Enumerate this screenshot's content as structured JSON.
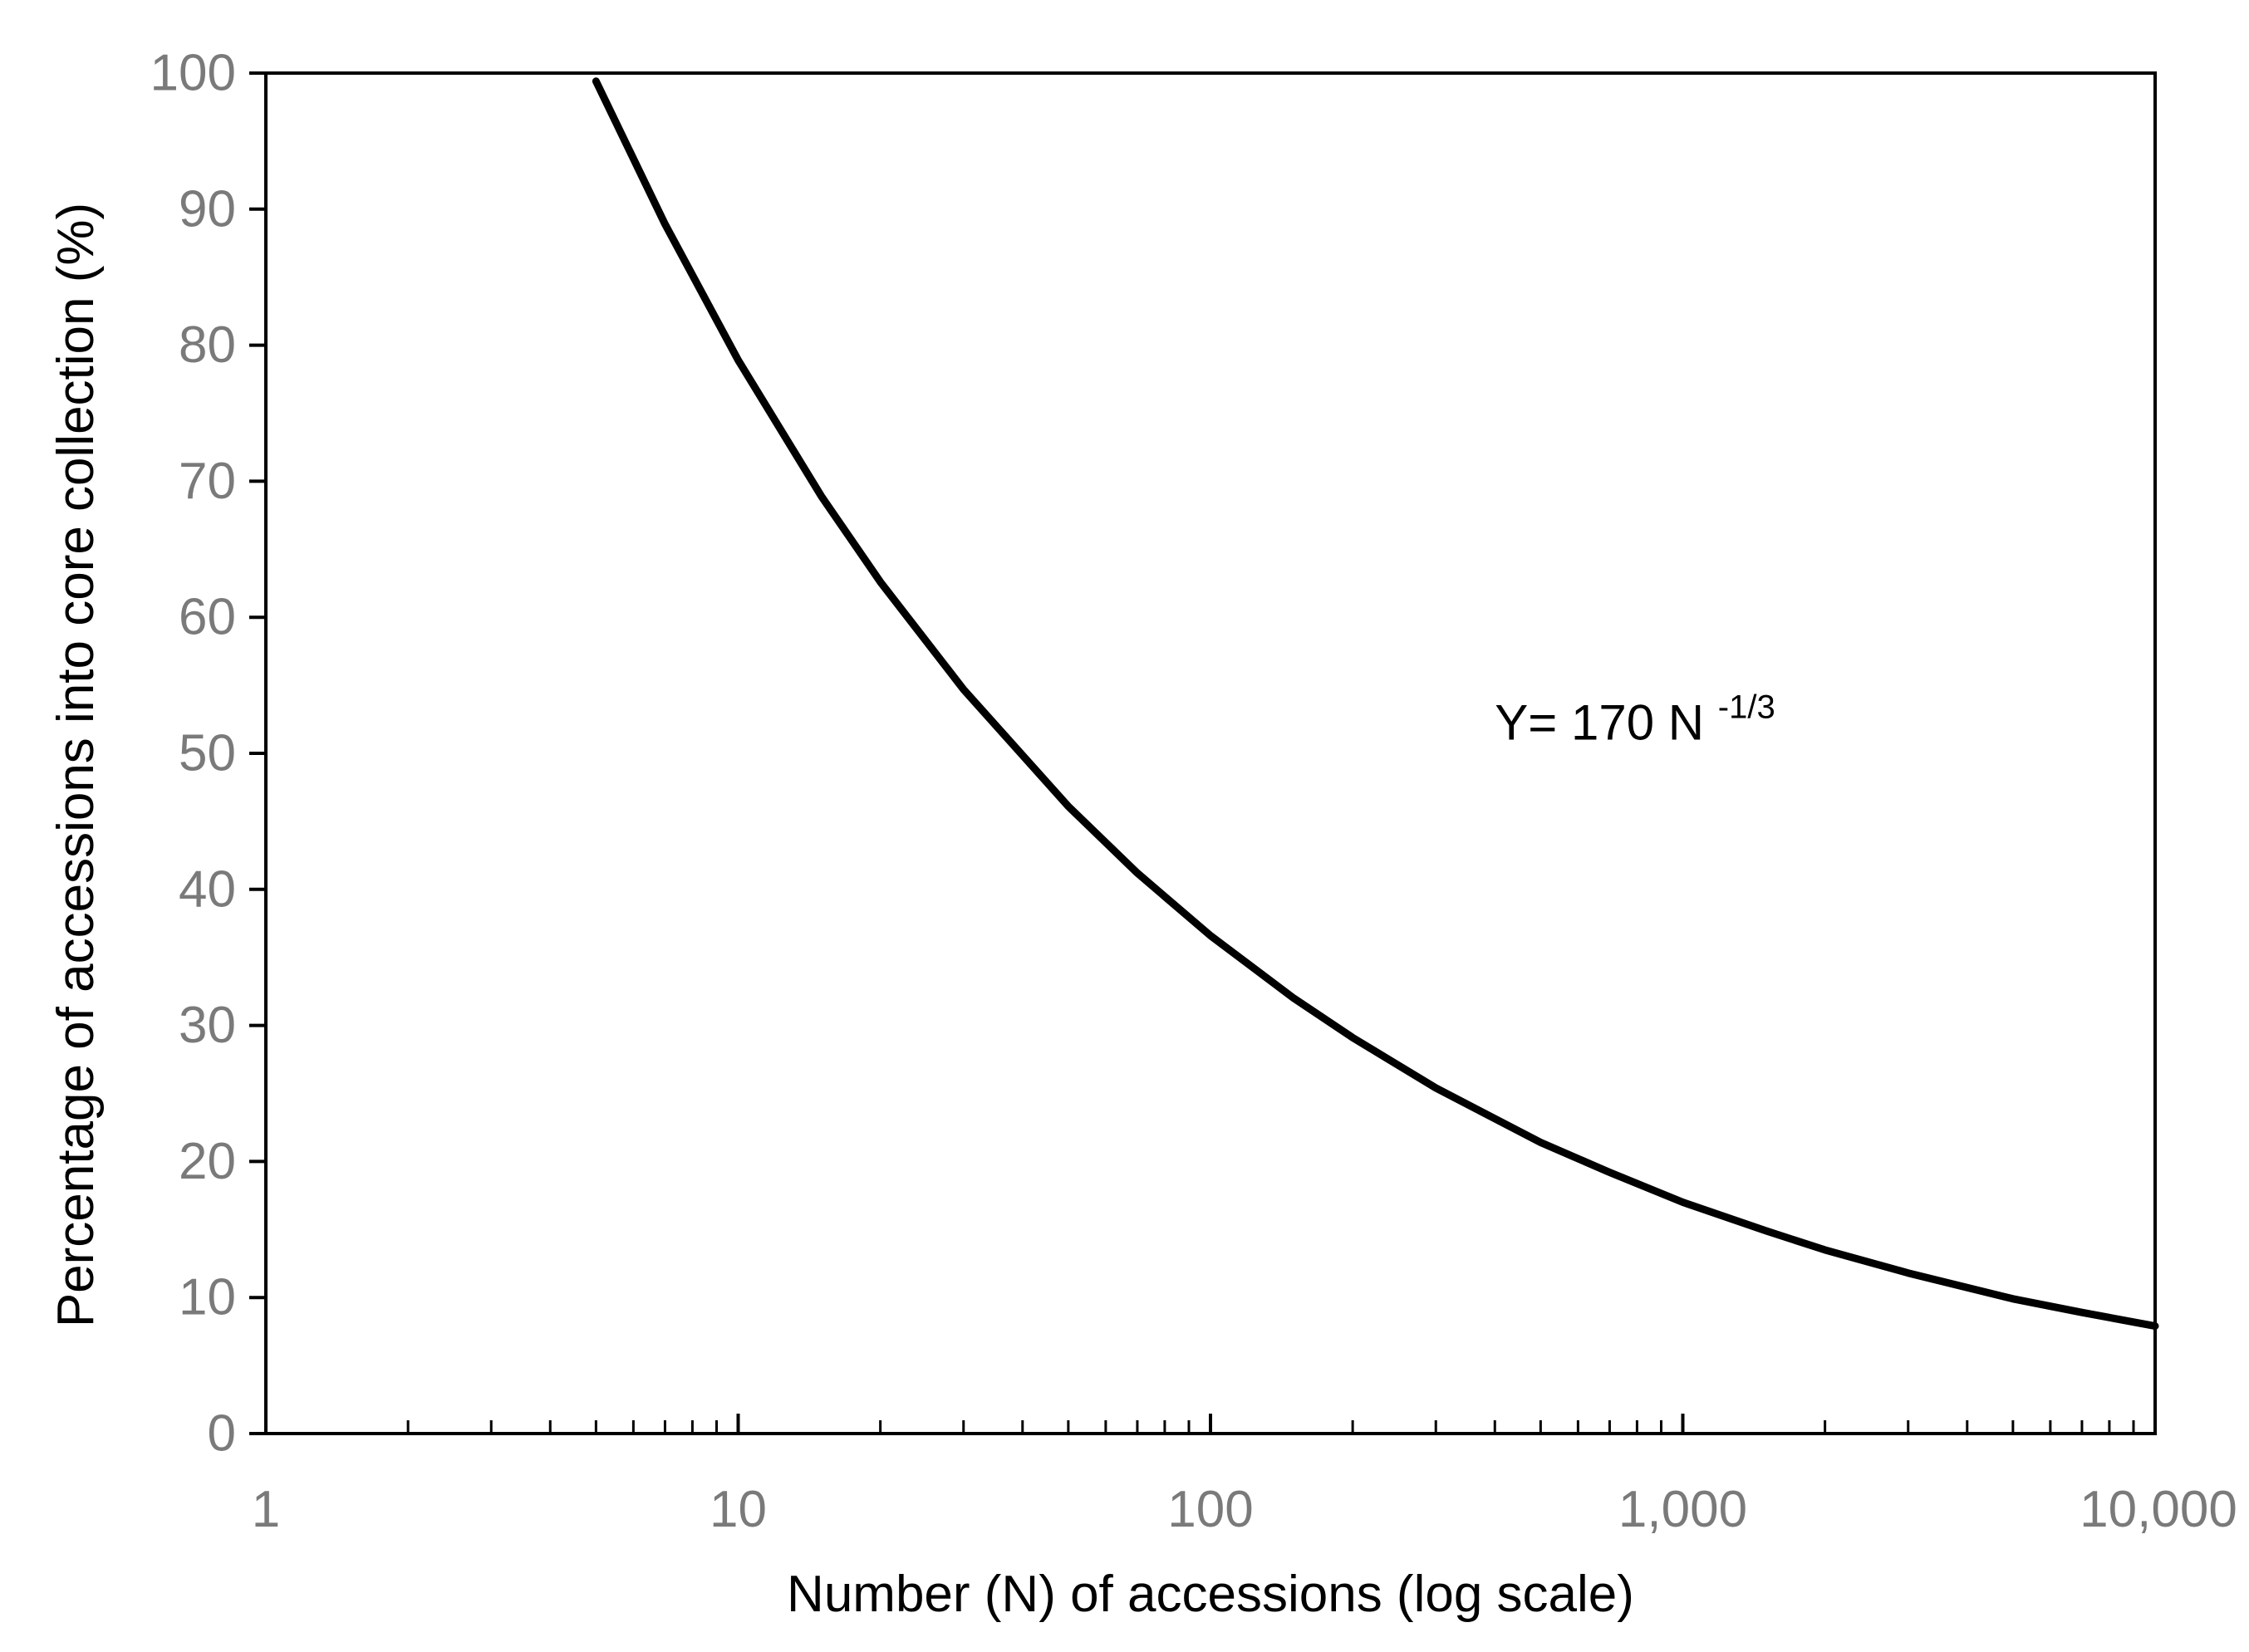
{
  "chart_data": {
    "type": "line",
    "title": "",
    "xlabel": "Number (N) of accessions (log scale)",
    "ylabel": "Percentage of accessions into core collection  (%)",
    "x_scale": "log",
    "xlim": [
      1,
      10000
    ],
    "ylim": [
      0,
      100
    ],
    "grid": false,
    "legend": "none",
    "x_ticks": [
      {
        "value": 1,
        "label": "1"
      },
      {
        "value": 10,
        "label": "10"
      },
      {
        "value": 100,
        "label": "100"
      },
      {
        "value": 1000,
        "label": "1,000"
      },
      {
        "value": 10000,
        "label": "10,000"
      }
    ],
    "y_ticks": [
      {
        "value": 0,
        "label": "0"
      },
      {
        "value": 10,
        "label": "10"
      },
      {
        "value": 20,
        "label": "20"
      },
      {
        "value": 30,
        "label": "30"
      },
      {
        "value": 40,
        "label": "40"
      },
      {
        "value": 50,
        "label": "50"
      },
      {
        "value": 60,
        "label": "60"
      },
      {
        "value": 70,
        "label": "70"
      },
      {
        "value": 80,
        "label": "80"
      },
      {
        "value": 90,
        "label": "90"
      },
      {
        "value": 100,
        "label": "100"
      }
    ],
    "series": [
      {
        "color": "#000000",
        "x": [
          5,
          7,
          10,
          15,
          20,
          30,
          50,
          70,
          100,
          150,
          200,
          300,
          500,
          700,
          1000,
          1500,
          2000,
          3000,
          5000,
          7000,
          10000
        ],
        "y": [
          99.4,
          88.9,
          78.9,
          68.9,
          62.6,
          54.7,
          46.1,
          41.2,
          36.6,
          32.0,
          29.1,
          25.4,
          21.4,
          19.2,
          17.0,
          14.9,
          13.5,
          11.8,
          9.9,
          8.9,
          7.9
        ]
      }
    ],
    "annotation": {
      "prefix": "Y= 170 N ",
      "exponent": "-1/3",
      "x": 400,
      "y": 51
    }
  }
}
